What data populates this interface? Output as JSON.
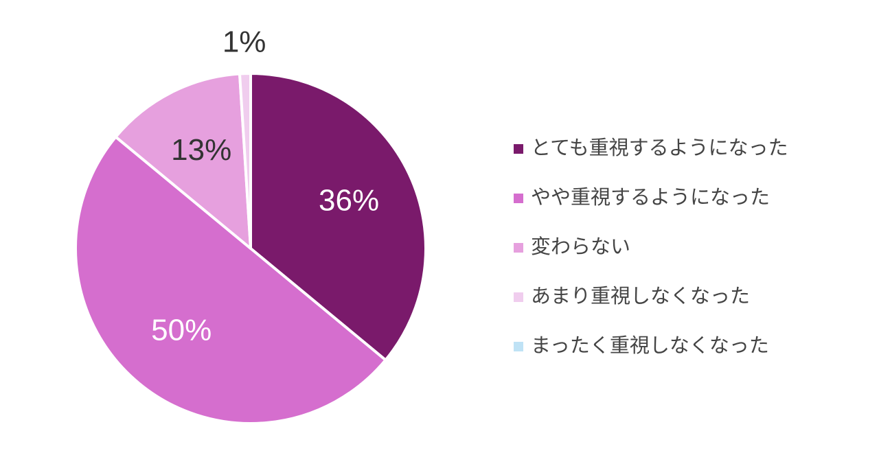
{
  "chart_data": {
    "type": "pie",
    "categories": [
      "とても重視するようになった",
      "やや重視するようになった",
      "変わらない",
      "あまり重視しなくなった",
      "まったく重視しなくなった"
    ],
    "values": [
      36,
      50,
      13,
      1,
      0
    ],
    "value_labels": [
      "36%",
      "50%",
      "13%",
      "1%",
      null
    ],
    "colors": [
      "#7a1a6b",
      "#d56ece",
      "#e6a0de",
      "#f0cdee",
      "#bfe2f5"
    ],
    "legend": "right"
  }
}
